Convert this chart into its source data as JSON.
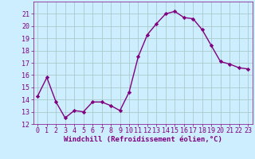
{
  "x": [
    0,
    1,
    2,
    3,
    4,
    5,
    6,
    7,
    8,
    9,
    10,
    11,
    12,
    13,
    14,
    15,
    16,
    17,
    18,
    19,
    20,
    21,
    22,
    23
  ],
  "y": [
    14.3,
    15.8,
    13.8,
    12.5,
    13.1,
    13.0,
    13.8,
    13.8,
    13.5,
    13.1,
    14.6,
    17.5,
    19.3,
    20.2,
    21.0,
    21.2,
    20.7,
    20.6,
    19.7,
    18.4,
    17.1,
    16.9,
    16.6,
    16.5
  ],
  "line_color": "#800080",
  "marker": "D",
  "marker_size": 2.2,
  "bg_color": "#cceeff",
  "grid_color": "#aacccc",
  "xlabel": "Windchill (Refroidissement éolien,°C)",
  "ylim": [
    12,
    22
  ],
  "xlim": [
    -0.5,
    23.5
  ],
  "yticks": [
    12,
    13,
    14,
    15,
    16,
    17,
    18,
    19,
    20,
    21
  ],
  "xticks": [
    0,
    1,
    2,
    3,
    4,
    5,
    6,
    7,
    8,
    9,
    10,
    11,
    12,
    13,
    14,
    15,
    16,
    17,
    18,
    19,
    20,
    21,
    22,
    23
  ],
  "tick_color": "#800080",
  "label_fontsize": 6.5,
  "tick_fontsize": 6.0,
  "linewidth": 1.0
}
